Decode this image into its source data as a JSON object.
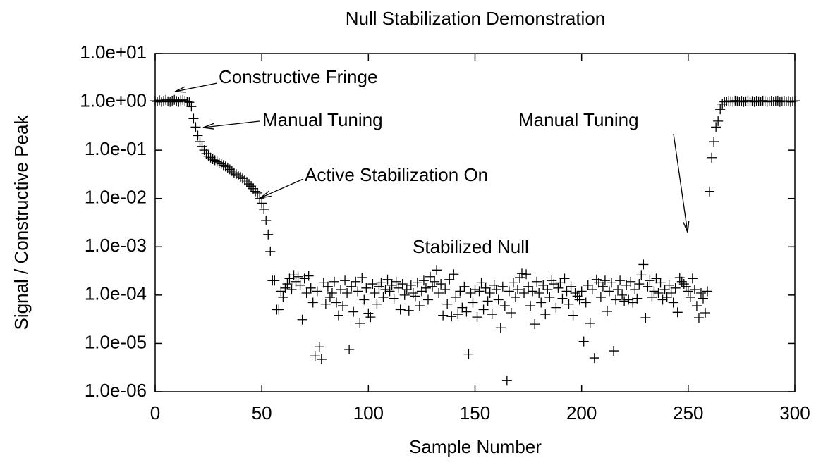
{
  "chart_data": {
    "type": "scatter",
    "title": "Null Stabilization Demonstration",
    "xlabel": "Sample Number",
    "ylabel": "Signal / Constructive Peak",
    "yscale": "log",
    "color": "#000000",
    "marker": "+",
    "xlim": [
      0,
      300
    ],
    "xticks": [
      0,
      50,
      100,
      150,
      200,
      250,
      300
    ],
    "ylim": [
      1e-06,
      10
    ],
    "yticks": [
      {
        "value": 1e-06,
        "label": "1.0e-06"
      },
      {
        "value": 1e-05,
        "label": "1.0e-05"
      },
      {
        "value": 0.0001,
        "label": "1.0e-04"
      },
      {
        "value": 0.001,
        "label": "1.0e-03"
      },
      {
        "value": 0.01,
        "label": "1.0e-02"
      },
      {
        "value": 0.1,
        "label": "1.0e-01"
      },
      {
        "value": 1,
        "label": "1.0e+00"
      },
      {
        "value": 10,
        "label": "1.0e+01"
      }
    ],
    "annotations": [
      "Constructive Fringe",
      "Manual Tuning",
      "Active Stabilization On",
      "Manual Tuning",
      "Stabilized Null"
    ],
    "x": [
      0,
      1,
      2,
      3,
      4,
      5,
      6,
      7,
      8,
      9,
      10,
      11,
      12,
      13,
      14,
      15,
      16,
      17,
      18,
      19,
      20,
      21,
      22,
      23,
      24,
      25,
      26,
      27,
      28,
      29,
      30,
      31,
      32,
      33,
      34,
      35,
      36,
      37,
      38,
      39,
      40,
      41,
      42,
      43,
      44,
      45,
      46,
      47,
      48,
      49,
      50,
      51,
      52,
      53,
      54,
      55,
      56,
      57,
      58,
      59,
      60,
      61,
      62,
      63,
      64,
      65,
      66,
      67,
      68,
      69,
      70,
      71,
      72,
      73,
      74,
      75,
      76,
      77,
      78,
      79,
      80,
      81,
      82,
      83,
      84,
      85,
      86,
      87,
      88,
      89,
      90,
      91,
      92,
      93,
      94,
      95,
      96,
      97,
      98,
      99,
      100,
      101,
      102,
      103,
      104,
      105,
      106,
      107,
      108,
      109,
      110,
      111,
      112,
      113,
      114,
      115,
      116,
      117,
      118,
      119,
      120,
      121,
      122,
      123,
      124,
      125,
      126,
      127,
      128,
      129,
      130,
      131,
      132,
      133,
      134,
      135,
      136,
      137,
      138,
      139,
      140,
      141,
      142,
      143,
      144,
      145,
      146,
      147,
      148,
      149,
      150,
      151,
      152,
      153,
      154,
      155,
      156,
      157,
      158,
      159,
      160,
      161,
      162,
      163,
      164,
      165,
      166,
      167,
      168,
      169,
      170,
      171,
      172,
      173,
      174,
      175,
      176,
      177,
      178,
      179,
      180,
      181,
      182,
      183,
      184,
      185,
      186,
      187,
      188,
      189,
      190,
      191,
      192,
      193,
      194,
      195,
      196,
      197,
      198,
      199,
      200,
      201,
      202,
      203,
      204,
      205,
      206,
      207,
      208,
      209,
      210,
      211,
      212,
      213,
      214,
      215,
      216,
      217,
      218,
      219,
      220,
      221,
      222,
      223,
      224,
      225,
      226,
      227,
      228,
      229,
      230,
      231,
      232,
      233,
      234,
      235,
      236,
      237,
      238,
      239,
      240,
      241,
      242,
      243,
      244,
      245,
      246,
      247,
      248,
      249,
      250,
      251,
      252,
      253,
      254,
      255,
      256,
      257,
      258,
      259,
      260,
      261,
      262,
      263,
      264,
      265,
      266,
      267,
      268,
      269,
      270,
      271,
      272,
      273,
      274,
      275,
      276,
      277,
      278,
      279,
      280,
      281,
      282,
      283,
      284,
      285,
      286,
      287,
      288,
      289,
      290,
      291,
      292,
      293,
      294,
      295,
      296,
      297,
      298,
      299,
      300
    ],
    "values": [
      1.05,
      1.02,
      1.08,
      1.0,
      1.05,
      1.1,
      1.03,
      1.0,
      1.06,
      1.1,
      1.04,
      1.0,
      1.07,
      1.1,
      1.05,
      1.02,
      0.98,
      0.8,
      0.45,
      0.3,
      0.2,
      0.15,
      0.12,
      0.1,
      0.085,
      0.075,
      0.07,
      0.065,
      0.062,
      0.058,
      0.055,
      0.052,
      0.049,
      0.046,
      0.043,
      0.04,
      0.037,
      0.034,
      0.032,
      0.03,
      0.028,
      0.026,
      0.024,
      0.022,
      0.02,
      0.018,
      0.016,
      0.014,
      0.013,
      0.01,
      0.008,
      0.006,
      0.0035,
      0.0018,
      0.0008,
      0.0002,
      0.0002,
      5e-05,
      5e-05,
      0.00012,
      9e-05,
      0.00014,
      0.00017,
      0.00022,
      0.00013,
      0.00026,
      0.00019,
      0.00024,
      0.00016,
      3.1e-05,
      0.00022,
      0.00011,
      0.00025,
      0.00014,
      7e-05,
      5.5e-06,
      0.00012,
      8.5e-06,
      4.7e-06,
      0.00018,
      6.5e-05,
      0.00015,
      9e-05,
      0.00011,
      0.00019,
      7e-05,
      3.8e-05,
      0.00013,
      6e-05,
      0.0002,
      0.00011,
      7.5e-06,
      0.00015,
      4.5e-05,
      0.00019,
      0.00012,
      2.6e-05,
      0.00023,
      8e-05,
      0.00014,
      4.2e-05,
      3.5e-05,
      0.00017,
      0.00011,
      6.5e-05,
      0.00015,
      0.00018,
      9e-05,
      0.00013,
      0.00021,
      0.00012,
      0.00016,
      8.5e-05,
      0.00019,
      0.00014,
      5e-05,
      0.00017,
      0.0001,
      0.00013,
      4.8e-05,
      0.00016,
      0.00011,
      9.5e-05,
      0.00018,
      6e-05,
      0.00012,
      0.0002,
      0.00014,
      8e-05,
      0.00024,
      0.00015,
      0.00019,
      0.00033,
      0.00011,
      0.00017,
      3.8e-05,
      0.00013,
      6.5e-05,
      0.00021,
      3.6e-05,
      0.00027,
      9e-05,
      4e-05,
      0.00012,
      5.5e-05,
      0.00015,
      4.5e-05,
      6e-06,
      0.00011,
      7e-05,
      0.00013,
      3.5e-05,
      0.00012,
      0.00018,
      5e-05,
      0.00014,
      7.5e-05,
      0.00011,
      4e-05,
      0.00016,
      0.00013,
      8e-05,
      2.1e-05,
      0.00015,
      6e-05,
      1.7e-06,
      0.00012,
      4.3e-05,
      0.00018,
      9e-05,
      0.00013,
      0.00023,
      0.00028,
      0.00011,
      0.00027,
      0.00015,
      6e-05,
      0.00012,
      2.5e-05,
      0.00019,
      0.00011,
      7e-05,
      0.00016,
      4e-05,
      0.00013,
      9e-05,
      0.0002,
      0.00017,
      5.5e-05,
      0.00014,
      0.00018,
      8.5e-05,
      0.00022,
      0.00012,
      6.5e-05,
      0.00015,
      3.8e-05,
      0.00011,
      9.5e-05,
      8e-05,
      0.00012,
      1.1e-05,
      7e-05,
      0.00016,
      2.6e-05,
      0.00013,
      5e-06,
      0.00021,
      0.00018,
      9e-05,
      0.00015,
      0.0002,
      4.6e-05,
      0.00012,
      0.00018,
      7e-06,
      8e-05,
      0.00013,
      0.0002,
      0.0001,
      7.5e-05,
      0.00016,
      8e-05,
      0.00019,
      7e-05,
      0.00013,
      8.5e-05,
      0.00017,
      0.00026,
      0.00043,
      3.4e-05,
      0.00015,
      0.0002,
      9e-05,
      0.00012,
      0.00022,
      0.00011,
      0.00018,
      8e-05,
      0.00013,
      9e-05,
      0.00016,
      0.00011,
      7e-05,
      0.00014,
      4.4e-05,
      0.00023,
      0.00019,
      0.00017,
      0.00015,
      0.00012,
      9e-05,
      0.00022,
      0.00013,
      6e-05,
      3.4e-05,
      0.00011,
      8.5e-05,
      4.3e-05,
      0.00012,
      0.014,
      0.07,
      0.15,
      0.3,
      0.4,
      0.7,
      0.9,
      1.0,
      1.02,
      1.05,
      1.03,
      1.0,
      1.06,
      1.04,
      1.02,
      1.05,
      1.0,
      1.03,
      1.06,
      1.02,
      1.04,
      1.0,
      1.05,
      1.03,
      1.02,
      1.06,
      1.04,
      1.0,
      1.03,
      1.05,
      1.02,
      1.04,
      1.06,
      1.0,
      1.03,
      1.05,
      1.02,
      1.04,
      1.0,
      1.03,
      1.05
    ]
  }
}
